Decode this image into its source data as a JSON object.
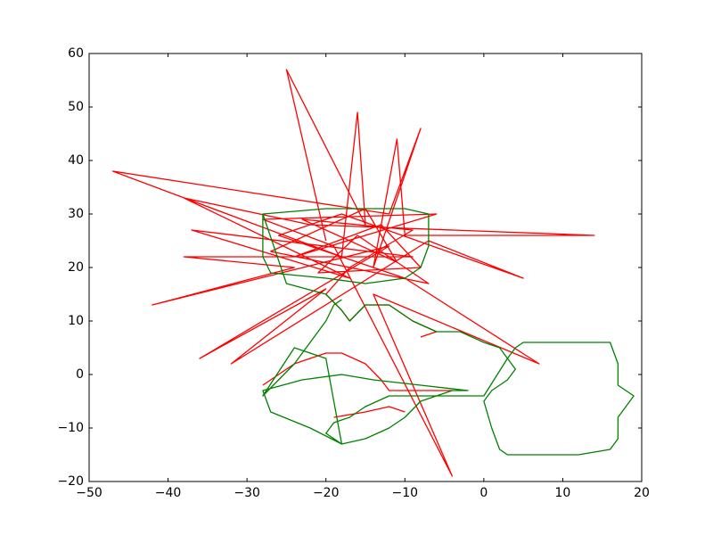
{
  "chart_data": {
    "type": "line",
    "xlim": [
      -50,
      20
    ],
    "xticks": [
      {
        "value": -50,
        "label": "−50"
      },
      {
        "value": -40,
        "label": "−40"
      },
      {
        "value": -30,
        "label": "−30"
      },
      {
        "value": -20,
        "label": "−20"
      },
      {
        "value": -10,
        "label": "−10"
      },
      0,
      10,
      20
    ],
    "ylim": [
      -20,
      60
    ],
    "yticks": [
      {
        "value": -20,
        "label": "−20"
      },
      {
        "value": -10,
        "label": "−10"
      },
      0,
      10,
      20,
      30,
      40,
      50,
      60
    ],
    "series": [
      {
        "color": "#ff0000",
        "x": [
          -20,
          -25,
          -15,
          -16,
          -18,
          -47,
          -12,
          -8,
          -14,
          -11,
          -10,
          14,
          -22,
          -38,
          -17,
          -37,
          -9,
          -38,
          -24,
          -42,
          -12,
          -36,
          -20,
          -32,
          -7,
          5,
          -18,
          -26,
          -10,
          7,
          -14,
          -4,
          -19,
          -28,
          -6,
          -24,
          -13,
          -8,
          -21,
          -16,
          -7,
          -27,
          -15,
          -11,
          -23,
          -9,
          -17,
          -20,
          -18,
          -17,
          -15,
          -12,
          -9,
          -6,
          -8,
          null,
          -28,
          -24,
          -20,
          -18,
          -15,
          -13,
          -12,
          -8,
          -4,
          null,
          -19,
          -15,
          -12,
          -10
        ],
        "values": [
          25,
          57,
          28,
          49,
          22,
          38,
          30,
          46,
          20,
          44,
          26,
          26,
          28,
          33,
          18,
          27,
          22,
          22,
          20,
          13,
          24,
          3,
          16,
          2,
          25,
          18,
          30,
          26,
          18,
          2,
          15,
          -19,
          24,
          29,
          30,
          22,
          28,
          20,
          19,
          26,
          17,
          23,
          31,
          21,
          29,
          27,
          20,
          15,
          12,
          10,
          13,
          13,
          10,
          8,
          7,
          null,
          -2,
          2,
          4,
          4,
          2,
          -1,
          -3,
          -3,
          -3,
          null,
          -8,
          -7,
          -6,
          -7
        ]
      },
      {
        "color": "#008000",
        "x": [
          -28,
          -20,
          -10,
          -7,
          -7,
          -8,
          -10,
          -15,
          -20,
          -27,
          -28,
          -28,
          -25,
          -20,
          -18,
          -17,
          -15,
          -12,
          -9,
          -6,
          -3,
          0,
          2,
          3,
          4,
          3,
          1,
          0,
          1,
          2,
          3,
          6,
          12,
          16,
          17,
          17,
          19,
          17,
          17,
          16,
          14,
          10,
          5,
          4,
          3,
          0,
          -5,
          -12,
          -15,
          -17,
          -19,
          -20,
          -18,
          -15,
          -12,
          -10,
          -8,
          -4,
          -2,
          -8,
          -14,
          -18,
          -23,
          -28,
          -27,
          -22,
          -18,
          -20,
          -24,
          -28,
          -24,
          -20,
          -19,
          -18
        ],
        "values": [
          30,
          31,
          31,
          30,
          24,
          20,
          18,
          17,
          18,
          19,
          22,
          30,
          17,
          15,
          12,
          10,
          13,
          13,
          10,
          8,
          8,
          6,
          5,
          3,
          1,
          -1,
          -3,
          -5,
          -10,
          -14,
          -15,
          -15,
          -15,
          -14,
          -12,
          -8,
          -4,
          -2,
          2,
          6,
          6,
          6,
          6,
          5,
          3,
          -4,
          -4,
          -4,
          -6,
          -8,
          -9,
          -11,
          -13,
          -12,
          -10,
          -8,
          -5,
          -3,
          -3,
          -2,
          -1,
          0,
          -1,
          -3,
          -7,
          -10,
          -13,
          3,
          5,
          -4,
          2,
          10,
          13,
          14
        ]
      }
    ]
  }
}
